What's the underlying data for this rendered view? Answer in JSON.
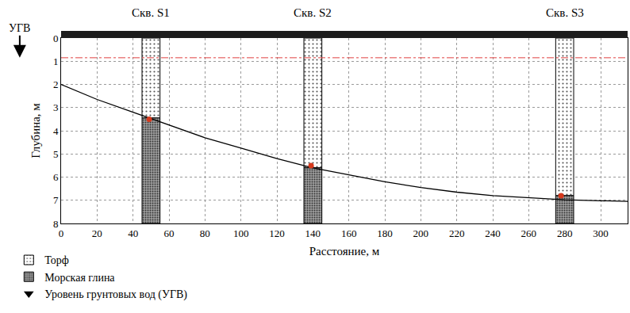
{
  "chart_data": {
    "type": "borehole_section",
    "x_label": "Расстояние, м",
    "y_label": "Глубина, м",
    "xlim": [
      0,
      315
    ],
    "xticks": [
      0,
      20,
      40,
      60,
      80,
      100,
      120,
      140,
      160,
      180,
      200,
      220,
      240,
      260,
      280,
      300
    ],
    "ylim": [
      0,
      8
    ],
    "yticks": [
      0,
      1,
      2,
      3,
      4,
      5,
      6,
      7,
      8
    ],
    "grid": true,
    "layers": [
      {
        "name": "Торф",
        "color": "#ffffff"
      },
      {
        "name": "Морская глина",
        "color": "#a0a0a0"
      }
    ],
    "boreholes": [
      {
        "name": "Скв. S1",
        "x": 50,
        "top_depth": 0,
        "contact_depth": 3.45,
        "bottom_depth": 8
      },
      {
        "name": "Скв. S2",
        "x": 140,
        "top_depth": 0,
        "contact_depth": 5.6,
        "bottom_depth": 8
      },
      {
        "name": "Скв. S3",
        "x": 280,
        "top_depth": 0,
        "contact_depth": 6.8,
        "bottom_depth": 8
      }
    ],
    "contact_points": {
      "x": [
        49,
        139,
        278
      ],
      "y": [
        3.5,
        5.5,
        6.8
      ],
      "color": "#d63a1e",
      "marker": "circle"
    },
    "contact_line": {
      "x": [
        0,
        20,
        40,
        60,
        80,
        100,
        120,
        140,
        160,
        180,
        200,
        220,
        240,
        260,
        280,
        300,
        315
      ],
      "y": [
        2.0,
        2.65,
        3.2,
        3.75,
        4.3,
        4.75,
        5.2,
        5.6,
        5.9,
        6.2,
        6.45,
        6.65,
        6.8,
        6.9,
        6.98,
        7.02,
        7.05
      ],
      "color": "#000000",
      "line_style": "solid"
    },
    "groundwater": {
      "name": "Уровень грунтовых вод (УГВ)",
      "label": "УГВ",
      "depth": 0.85,
      "color": "#e04040",
      "line_style": "dashdot",
      "marker": "triangle-down"
    }
  }
}
